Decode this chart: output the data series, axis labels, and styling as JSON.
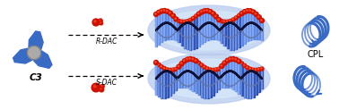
{
  "background_color": "#ffffff",
  "blue_color": "#3a6bc4",
  "blue_light": "#7799dd",
  "blue_dark": "#1a3a8a",
  "red_color": "#cc1100",
  "gray_color": "#aaaaaa",
  "glow_color": "#b8ccee",
  "label_c3": "C3",
  "label_r_dac": "R-DAC",
  "label_s_dac": "S-DAC",
  "label_cpl": "CPL",
  "figsize": [
    3.78,
    1.22
  ],
  "dpi": 100
}
